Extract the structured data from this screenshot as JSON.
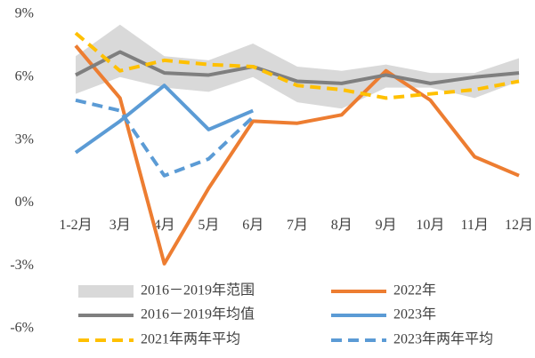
{
  "chart_data": {
    "type": "line",
    "categories": [
      "1-2月",
      "3月",
      "4月",
      "5月",
      "6月",
      "7月",
      "8月",
      "9月",
      "10月",
      "11月",
      "12月"
    ],
    "ylim": [
      -6,
      9
    ],
    "yticks": [
      {
        "value": -6,
        "label": "-6%"
      },
      {
        "value": -3,
        "label": "-3%"
      },
      {
        "value": 0,
        "label": "0%"
      },
      {
        "value": 3,
        "label": "3%"
      },
      {
        "value": 6,
        "label": "6%"
      },
      {
        "value": 9,
        "label": "9%"
      }
    ],
    "series": [
      {
        "name": "2016－2019年范围",
        "kind": "band",
        "color": "#d9d9d9",
        "high": [
          7.0,
          8.5,
          7.0,
          6.8,
          7.6,
          6.5,
          6.3,
          6.6,
          6.2,
          6.2,
          6.9
        ],
        "low": [
          5.2,
          6.0,
          5.5,
          5.3,
          6.0,
          4.8,
          4.5,
          5.5,
          5.5,
          5.0,
          5.8
        ]
      },
      {
        "name": "2022年",
        "color": "#ed7d31",
        "dash": false,
        "values": [
          7.5,
          5.0,
          -2.9,
          0.7,
          3.9,
          3.8,
          4.2,
          6.3,
          4.9,
          2.2,
          1.3
        ]
      },
      {
        "name": "2016－2019年均值",
        "color": "#7f7f7f",
        "dash": false,
        "values": [
          6.1,
          7.2,
          6.2,
          6.1,
          6.5,
          5.8,
          5.7,
          6.1,
          5.7,
          6.0,
          6.2
        ]
      },
      {
        "name": "2023年",
        "color": "#5b9bd5",
        "dash": false,
        "values": [
          2.4,
          3.9,
          5.6,
          3.5,
          4.4,
          null,
          null,
          null,
          null,
          null,
          null
        ]
      },
      {
        "name": "2021年两年平均",
        "color": "#ffc000",
        "dash": true,
        "values": [
          8.1,
          6.3,
          6.8,
          6.6,
          6.5,
          5.6,
          5.4,
          5.0,
          5.2,
          5.4,
          5.8
        ]
      },
      {
        "name": "2023年两年平均",
        "color": "#5b9bd5",
        "dash": true,
        "values": [
          4.9,
          4.4,
          1.3,
          2.1,
          4.1,
          null,
          null,
          null,
          null,
          null,
          null
        ]
      }
    ]
  }
}
